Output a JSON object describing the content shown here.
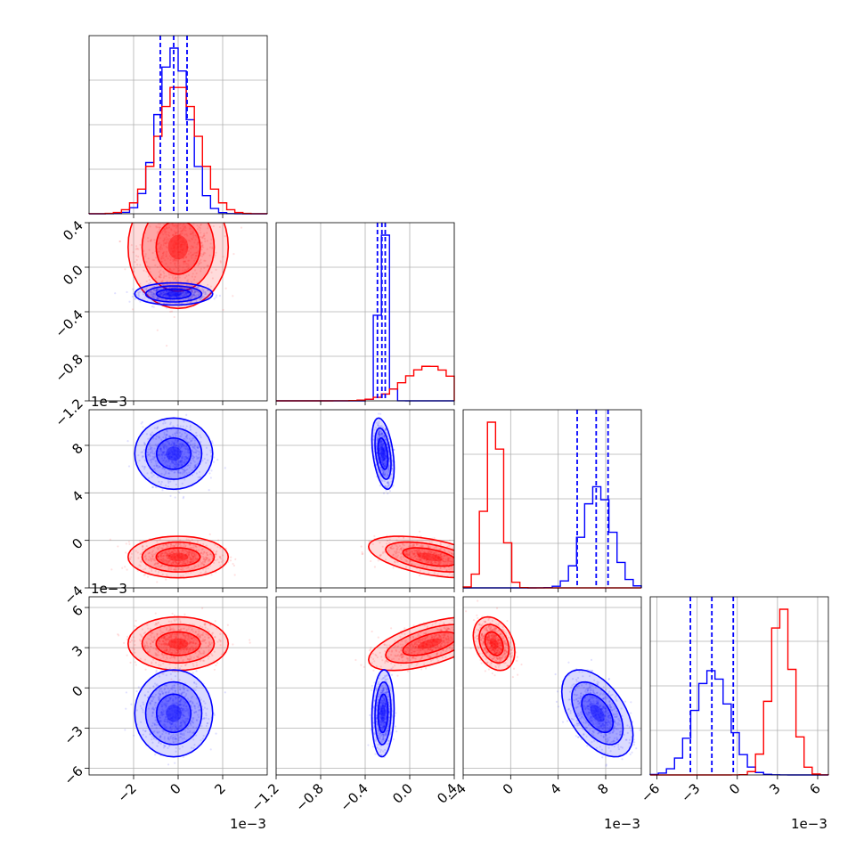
{
  "chart_data": {
    "type": "corner",
    "colors": {
      "series_a": "#0000ff",
      "series_b": "#ff0000",
      "grid": "#b0b0b0"
    },
    "grid": true,
    "series": [
      {
        "color": "#0000ff",
        "mean": [
          -0.0002,
          -0.24,
          0.0073,
          -0.0019
        ],
        "std": [
          0.0007,
          0.04,
          0.0012,
          0.0013
        ],
        "quantile_lines": true
      },
      {
        "color": "#ff0000",
        "mean": [
          0.0,
          0.18,
          -0.0014,
          0.0033
        ],
        "std": [
          0.0009,
          0.22,
          0.0007,
          0.0008
        ],
        "quantile_lines": false
      }
    ],
    "quantiles": {
      "p0": [
        -0.0008,
        -0.0002,
        0.0004
      ],
      "p1": [
        -0.29,
        -0.25,
        -0.22
      ],
      "p2": [
        0.0056,
        0.0072,
        0.0082
      ],
      "p3": [
        -0.0035,
        -0.0019,
        -0.0003
      ]
    },
    "ranges": {
      "p0": [
        -0.004,
        0.004
      ],
      "p1": [
        -1.2,
        0.4
      ],
      "p2": [
        -0.004,
        0.011
      ],
      "p3": [
        -0.0065,
        0.0068
      ]
    },
    "ticks": {
      "p0": {
        "values": [
          -0.002,
          0.0,
          0.002
        ],
        "labels": [
          "−2",
          "0",
          "2"
        ]
      },
      "p1": {
        "values": [
          -1.2,
          -0.8,
          -0.4,
          0.0,
          0.4
        ],
        "labels": [
          "−1.2",
          "−0.8",
          "−0.4",
          "0.0",
          "0.4"
        ]
      },
      "p2": {
        "values": [
          -0.004,
          0.0,
          0.004,
          0.008
        ],
        "labels": [
          "−4",
          "0",
          "4",
          "8"
        ]
      },
      "p3": {
        "values": [
          -0.006,
          -0.003,
          0.0,
          0.003,
          0.006
        ],
        "labels": [
          "−6",
          "−3",
          "0",
          "3",
          "6"
        ]
      }
    },
    "offset_text": "1e−3"
  }
}
